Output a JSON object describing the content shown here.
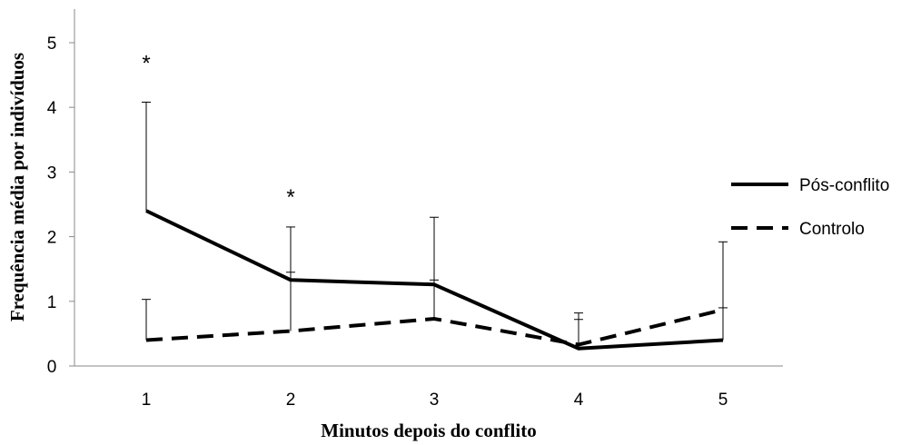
{
  "chart_data": {
    "type": "line",
    "categories": [
      "1",
      "2",
      "3",
      "4",
      "5"
    ],
    "xlabel": "Minutos depois do conflito",
    "ylabel": "Frequência média por indivíduos",
    "ylim": [
      0,
      5
    ],
    "yticks": [
      "0",
      "1",
      "2",
      "3",
      "4",
      "5"
    ],
    "grid": false,
    "legend_position": "right",
    "series": [
      {
        "name": "Pós-conflito",
        "style": "solid",
        "color": "#000000",
        "values": [
          2.4,
          1.33,
          1.26,
          0.27,
          0.4
        ],
        "error_upper": [
          4.08,
          2.15,
          2.3,
          0.72,
          0.9
        ]
      },
      {
        "name": "Controlo",
        "style": "dashed",
        "color": "#000000",
        "values": [
          0.4,
          0.54,
          0.73,
          0.33,
          0.87
        ],
        "error_upper": [
          1.03,
          1.45,
          1.33,
          0.82,
          1.92
        ]
      }
    ],
    "annotations": [
      {
        "text": "*",
        "x": "1",
        "y": 4.85
      },
      {
        "text": "*",
        "x": "2",
        "y": 2.78
      }
    ]
  }
}
